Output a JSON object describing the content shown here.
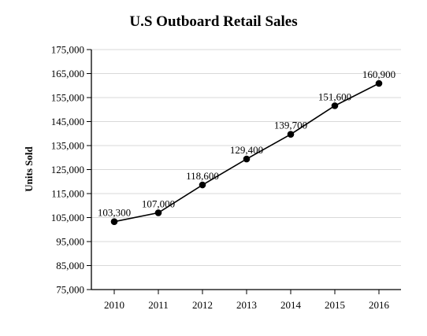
{
  "chart_data": {
    "type": "line",
    "title": "U.S Outboard Retail Sales",
    "xlabel": "",
    "ylabel": "Units Sold",
    "categories": [
      "2010",
      "2011",
      "2012",
      "2013",
      "2014",
      "2015",
      "2016"
    ],
    "series": [
      {
        "values": [
          103300,
          107000,
          118600,
          129400,
          139700,
          151600,
          160900
        ]
      }
    ],
    "data_labels": [
      "103,300",
      "107,000",
      "118,600",
      "129,400",
      "139,700",
      "151,600",
      "160,900"
    ],
    "y_ticks": [
      "75,000",
      "85,000",
      "95,000",
      "105,000",
      "115,000",
      "125,000",
      "135,000",
      "145,000",
      "155,000",
      "165,000",
      "175,000"
    ],
    "ylim": [
      75000,
      175000
    ],
    "y_tick_step": 10000,
    "grid": true,
    "legend": "none",
    "colors": {
      "line": "#000000",
      "marker": "#000000",
      "grid": "#d9d9d9"
    }
  }
}
